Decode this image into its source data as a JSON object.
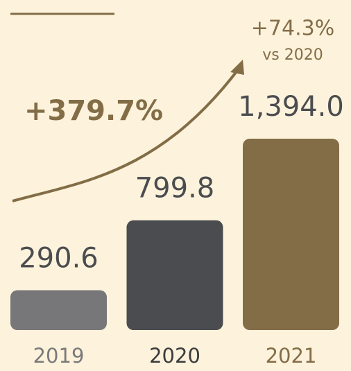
{
  "chart_data": {
    "type": "bar",
    "categories": [
      "2019",
      "2020",
      "2021"
    ],
    "values": [
      290.6,
      799.8,
      1394.0
    ],
    "value_labels": [
      "290.6",
      "799.8",
      "1,394.0"
    ],
    "colors": [
      "#77777a",
      "#4b4c4f",
      "#836d47"
    ],
    "category_label_colors": [
      "#7a7a7a",
      "#3c3c3e",
      "#836d47"
    ],
    "annotations": [
      "+379.7%",
      "+74.3%",
      "vs 2020"
    ]
  }
}
